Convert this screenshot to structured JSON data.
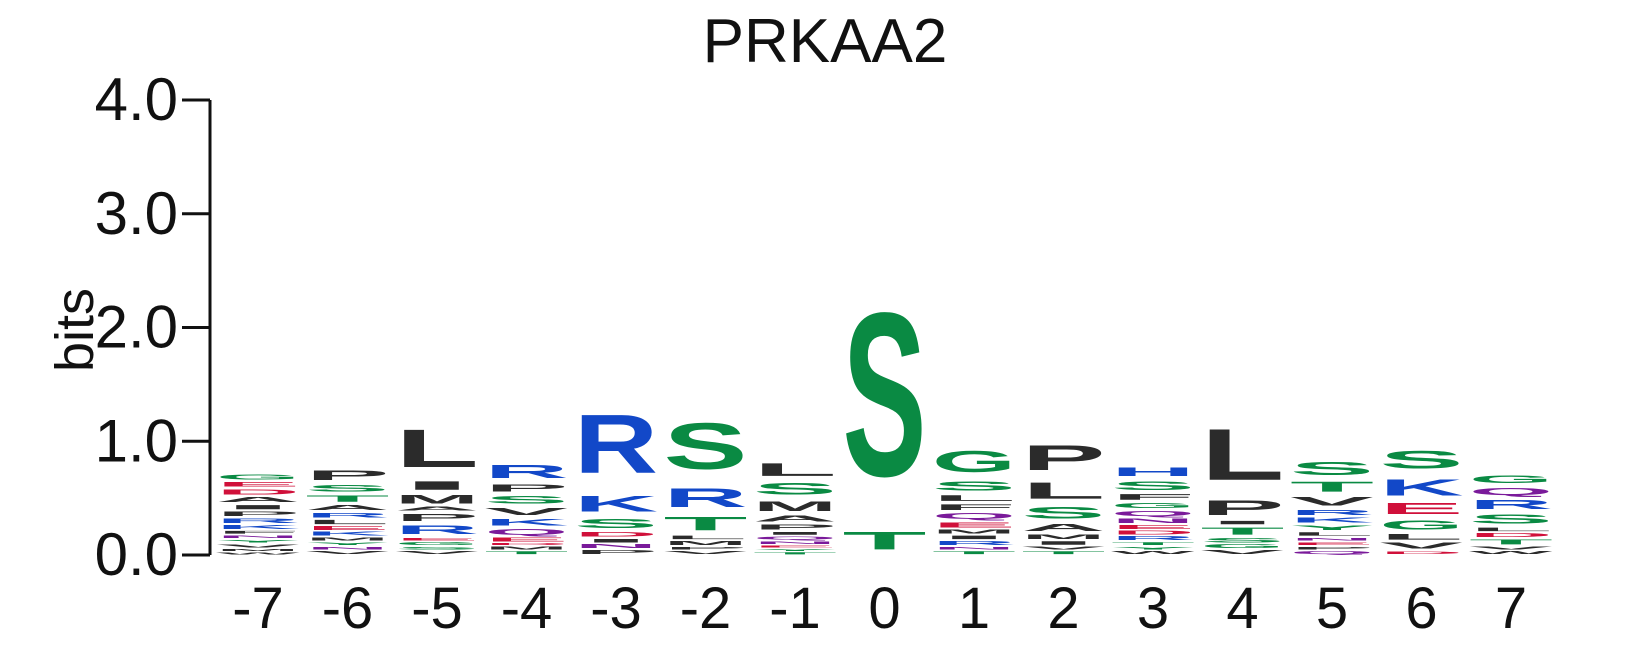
{
  "chart_data": {
    "type": "sequence-logo",
    "title": "PRKAA2",
    "ylabel": "bits",
    "ylim": [
      0,
      4
    ],
    "yticks": [
      "0.0",
      "1.0",
      "2.0",
      "3.0",
      "4.0"
    ],
    "positions": [
      "-7",
      "-6",
      "-5",
      "-4",
      "-3",
      "-2",
      "-1",
      "0",
      "1",
      "2",
      "3",
      "4",
      "5",
      "6",
      "7"
    ],
    "colors": {
      "hydrophobic": "#2b2b2b",
      "polar": "#0a8a43",
      "basic": "#1248c8",
      "acidic": "#d0103a",
      "amide": "#7a1a9a"
    },
    "residue_class": {
      "A": "hydrophobic",
      "V": "hydrophobic",
      "L": "hydrophobic",
      "I": "hydrophobic",
      "P": "hydrophobic",
      "M": "hydrophobic",
      "F": "hydrophobic",
      "W": "hydrophobic",
      "S": "polar",
      "T": "polar",
      "G": "polar",
      "Y": "polar",
      "C": "polar",
      "K": "basic",
      "R": "basic",
      "H": "basic",
      "D": "acidic",
      "E": "acidic",
      "N": "amide",
      "Q": "amide"
    },
    "stacks": [
      {
        "pos": "-7",
        "letters": [
          [
            "W",
            0.03
          ],
          [
            "M",
            0.03
          ],
          [
            "V",
            0.04
          ],
          [
            "Y",
            0.04
          ],
          [
            "N",
            0.04
          ],
          [
            "F",
            0.04
          ],
          [
            "K",
            0.05
          ],
          [
            "R",
            0.06
          ],
          [
            "P",
            0.06
          ],
          [
            "I",
            0.06
          ],
          [
            "A",
            0.07
          ],
          [
            "D",
            0.07
          ],
          [
            "E",
            0.06
          ],
          [
            "G",
            0.07
          ]
        ]
      },
      {
        "pos": "-6",
        "letters": [
          [
            "V",
            0.04
          ],
          [
            "N",
            0.04
          ],
          [
            "Y",
            0.04
          ],
          [
            "M",
            0.04
          ],
          [
            "K",
            0.05
          ],
          [
            "E",
            0.05
          ],
          [
            "L",
            0.06
          ],
          [
            "R",
            0.06
          ],
          [
            "A",
            0.07
          ],
          [
            "T",
            0.09
          ],
          [
            "S",
            0.09
          ],
          [
            "P",
            0.14
          ]
        ]
      },
      {
        "pos": "-5",
        "letters": [
          [
            "V",
            0.04
          ],
          [
            "S",
            0.04
          ],
          [
            "G",
            0.04
          ],
          [
            "E",
            0.04
          ],
          [
            "R",
            0.12
          ],
          [
            "P",
            0.1
          ],
          [
            "A",
            0.05
          ],
          [
            "M",
            0.12
          ],
          [
            "I",
            0.12
          ],
          [
            "L",
            0.53
          ]
        ]
      },
      {
        "pos": "-4",
        "letters": [
          [
            "T",
            0.04
          ],
          [
            "M",
            0.04
          ],
          [
            "D",
            0.03
          ],
          [
            "E",
            0.05
          ],
          [
            "Q",
            0.08
          ],
          [
            "K",
            0.09
          ],
          [
            "V",
            0.1
          ],
          [
            "S",
            0.11
          ],
          [
            "P",
            0.1
          ],
          [
            "R",
            0.18
          ]
        ]
      },
      {
        "pos": "-3",
        "letters": [
          [
            "P",
            0.05
          ],
          [
            "N",
            0.05
          ],
          [
            "I",
            0.05
          ],
          [
            "D",
            0.06
          ],
          [
            "S",
            0.13
          ],
          [
            "K",
            0.22
          ],
          [
            "R",
            0.82
          ]
        ]
      },
      {
        "pos": "-2",
        "letters": [
          [
            "V",
            0.04
          ],
          [
            "P",
            0.04
          ],
          [
            "M",
            0.05
          ],
          [
            "L",
            0.05
          ],
          [
            "T",
            0.19
          ],
          [
            "R",
            0.26
          ],
          [
            "S",
            0.65
          ]
        ]
      },
      {
        "pos": "-1",
        "letters": [
          [
            "T",
            0.03
          ],
          [
            "Y",
            0.03
          ],
          [
            "E",
            0.03
          ],
          [
            "N",
            0.04
          ],
          [
            "Q",
            0.04
          ],
          [
            "I",
            0.04
          ],
          [
            "P",
            0.07
          ],
          [
            "A",
            0.08
          ],
          [
            "M",
            0.14
          ],
          [
            "S",
            0.16
          ],
          [
            "L",
            0.18
          ]
        ]
      },
      {
        "pos": "0",
        "letters": [
          [
            "T",
            0.25
          ],
          [
            "S",
            2.3
          ]
        ]
      },
      {
        "pos": "1",
        "letters": [
          [
            "T",
            0.04
          ],
          [
            "N",
            0.04
          ],
          [
            "R",
            0.05
          ],
          [
            "I",
            0.05
          ],
          [
            "M",
            0.05
          ],
          [
            "E",
            0.07
          ],
          [
            "Q",
            0.08
          ],
          [
            "F",
            0.08
          ],
          [
            "L",
            0.08
          ],
          [
            "S",
            0.13
          ],
          [
            "G",
            0.3
          ]
        ]
      },
      {
        "pos": "2",
        "letters": [
          [
            "T",
            0.04
          ],
          [
            "V",
            0.04
          ],
          [
            "I",
            0.05
          ],
          [
            "M",
            0.06
          ],
          [
            "A",
            0.1
          ],
          [
            "S",
            0.16
          ],
          [
            "L",
            0.23
          ],
          [
            "P",
            0.35
          ]
        ]
      },
      {
        "pos": "3",
        "letters": [
          [
            "W",
            0.04
          ],
          [
            "Y",
            0.04
          ],
          [
            "T",
            0.04
          ],
          [
            "R",
            0.05
          ],
          [
            "D",
            0.05
          ],
          [
            "E",
            0.05
          ],
          [
            "N",
            0.06
          ],
          [
            "Q",
            0.07
          ],
          [
            "G",
            0.07
          ],
          [
            "F",
            0.08
          ],
          [
            "S",
            0.12
          ],
          [
            "H",
            0.12
          ]
        ]
      },
      {
        "pos": "4",
        "letters": [
          [
            "V",
            0.05
          ],
          [
            "G",
            0.05
          ],
          [
            "S",
            0.06
          ],
          [
            "T",
            0.1
          ],
          [
            "I",
            0.05
          ],
          [
            "P",
            0.21
          ],
          [
            "L",
            0.72
          ]
        ]
      },
      {
        "pos": "5",
        "letters": [
          [
            "Q",
            0.04
          ],
          [
            "P",
            0.04
          ],
          [
            "E",
            0.04
          ],
          [
            "N",
            0.04
          ],
          [
            "L",
            0.05
          ],
          [
            "Y",
            0.06
          ],
          [
            "K",
            0.07
          ],
          [
            "R",
            0.07
          ],
          [
            "V",
            0.12
          ],
          [
            "T",
            0.14
          ],
          [
            "S",
            0.18
          ]
        ]
      },
      {
        "pos": "6",
        "letters": [
          [
            "D",
            0.04
          ],
          [
            "V",
            0.08
          ],
          [
            "L",
            0.08
          ],
          [
            "G",
            0.13
          ],
          [
            "E",
            0.15
          ],
          [
            "K",
            0.23
          ],
          [
            "S",
            0.25
          ]
        ]
      },
      {
        "pos": "7",
        "letters": [
          [
            "W",
            0.04
          ],
          [
            "V",
            0.04
          ],
          [
            "T",
            0.07
          ],
          [
            "D",
            0.05
          ],
          [
            "L",
            0.05
          ],
          [
            "S",
            0.13
          ],
          [
            "R",
            0.13
          ],
          [
            "Q",
            0.1
          ],
          [
            "G",
            0.11
          ]
        ]
      }
    ]
  }
}
